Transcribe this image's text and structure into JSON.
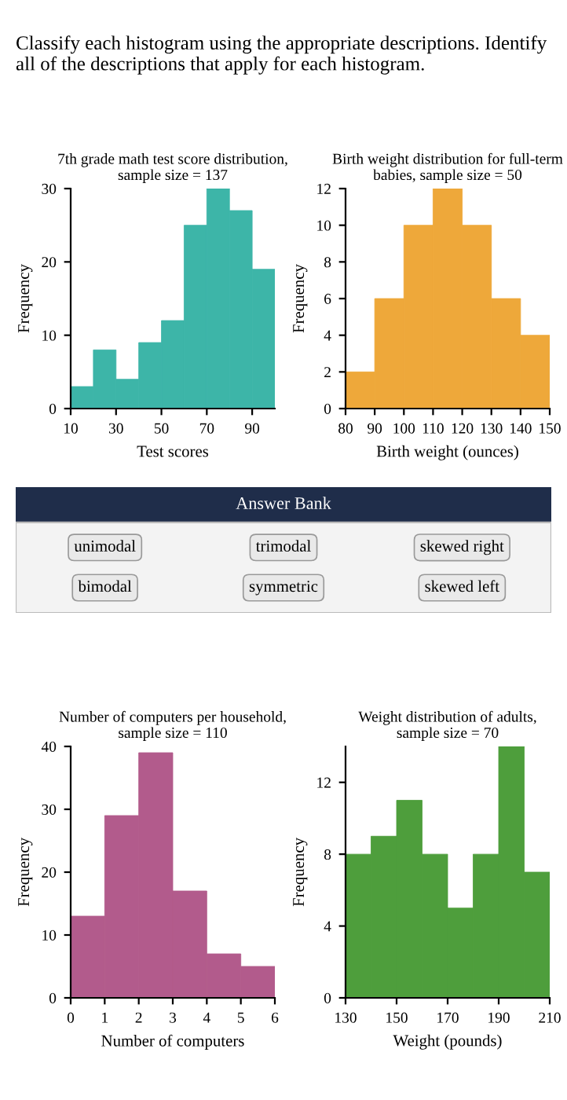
{
  "chart_data": [
    {
      "type": "other",
      "title": "Classify each histogram using the appropriate descriptions. Identify all of the descriptions that apply for each histogram."
    },
    {
      "type": "histogram",
      "title": "7th grade math test score distribution,\nsample size = 137",
      "xlabel": "Test scores",
      "ylabel": "Frequency",
      "bins": [
        10,
        20,
        30,
        40,
        50,
        60,
        70,
        80,
        90,
        100
      ],
      "values": [
        3,
        8,
        4,
        9,
        12,
        25,
        30,
        27,
        19
      ],
      "color": "#3db5a8",
      "xlim": [
        10,
        100
      ],
      "xticks": [
        10,
        30,
        50,
        70,
        90
      ],
      "ylim": [
        0,
        30
      ],
      "yticks": [
        0,
        10,
        20,
        30
      ],
      "grid": false
    },
    {
      "type": "histogram",
      "title": "Birth weight distribution for full-term\nbabies, sample size = 50",
      "xlabel": "Birth weight (ounces)",
      "ylabel": "Frequency",
      "bins": [
        80,
        90,
        100,
        110,
        120,
        130,
        140,
        150
      ],
      "values": [
        2,
        6,
        10,
        12,
        10,
        6,
        4
      ],
      "color": "#eea83a",
      "xlim": [
        80,
        150
      ],
      "xticks": [
        80,
        90,
        100,
        110,
        120,
        130,
        140,
        150
      ],
      "ylim": [
        0,
        12
      ],
      "yticks": [
        0,
        2,
        4,
        6,
        8,
        10,
        12
      ],
      "grid": false
    },
    {
      "type": "other",
      "title": "Answer Bank",
      "annotations": [
        "unimodal",
        "trimodal",
        "skewed right",
        "bimodal",
        "symmetric",
        "skewed left"
      ]
    },
    {
      "type": "histogram",
      "title": "Number of computers per household,\nsample size = 110",
      "xlabel": "Number of computers",
      "ylabel": "Frequency",
      "bins": [
        0,
        1,
        2,
        3,
        4,
        5,
        6
      ],
      "values": [
        13,
        29,
        39,
        17,
        7,
        5
      ],
      "color": "#b25b8c",
      "xlim": [
        0,
        6
      ],
      "xticks": [
        0,
        1,
        2,
        3,
        4,
        5,
        6
      ],
      "ylim": [
        0,
        40
      ],
      "yticks": [
        0,
        10,
        20,
        30,
        40
      ],
      "grid": false
    },
    {
      "type": "histogram",
      "title": "Weight distribution of adults,\nsample size = 70",
      "xlabel": "Weight (pounds)",
      "ylabel": "Frequency",
      "bins": [
        130,
        140,
        150,
        160,
        170,
        180,
        190,
        200,
        210
      ],
      "values": [
        8,
        9,
        11,
        8,
        5,
        8,
        14,
        7
      ],
      "color": "#4e9e3c",
      "xlim": [
        130,
        210
      ],
      "xticks": [
        130,
        150,
        170,
        190,
        210
      ],
      "ylim": [
        0,
        14
      ],
      "yticks": [
        0,
        4,
        8,
        12
      ],
      "grid": false
    }
  ]
}
